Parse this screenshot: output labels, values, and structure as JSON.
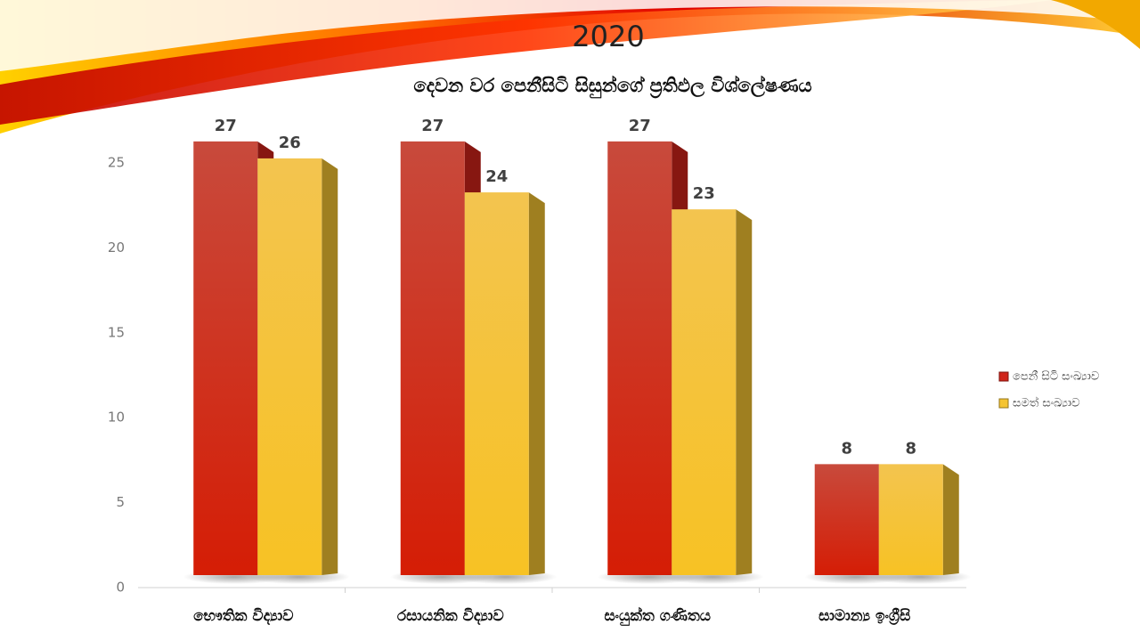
{
  "chart_data": {
    "type": "bar",
    "title": "2020",
    "subtitle": "දෙවන වර පෙනීසිටි සිසුන්ගේ ප්‍රතිඵල විශ්ලේෂණය",
    "categories": [
      "භෞතික විද්‍යාව",
      "රසායනික විද්‍යාව",
      "සංයුක්ත ගණිතය",
      "සාමාන්‍ය ඉංග්‍රීසි"
    ],
    "series": [
      {
        "name": "පෙනී සිටි සංඛ්‍යාව",
        "color": "#d0241a",
        "values": [
          27,
          27,
          27,
          8
        ]
      },
      {
        "name": "සමත් සංඛ්‍යාව",
        "color": "#f5c431",
        "values": [
          26,
          24,
          23,
          8
        ]
      }
    ],
    "ylim": [
      0,
      25
    ],
    "yticks": [
      0,
      5,
      10,
      15,
      20,
      25
    ],
    "grid": false,
    "legend": "right"
  }
}
